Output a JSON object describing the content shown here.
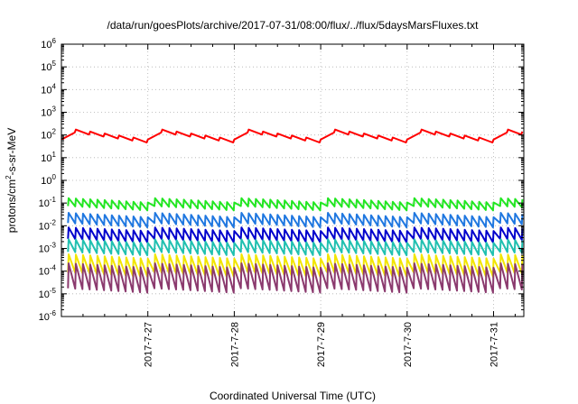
{
  "chart_data": {
    "type": "line",
    "title": "/data/run/goesPlots/archive/2017-07-31/08:00/flux/../flux/5daysMarsFluxes.txt",
    "xlabel": "Coordinated Universal Time (UTC)",
    "ylabel": {
      "pre": "protons/cm",
      "sup": "2",
      "post": "-s-sr-MeV"
    },
    "yscale": "log",
    "ylim_exp": [
      -6,
      6
    ],
    "xlim_days": [
      26.0,
      31.35
    ],
    "x_ticks": [
      {
        "day": 27,
        "label": "2017-7-27"
      },
      {
        "day": 28,
        "label": "2017-7-28"
      },
      {
        "day": 29,
        "label": "2017-7-29"
      },
      {
        "day": 30,
        "label": "2017-7-30"
      },
      {
        "day": 31,
        "label": "2017-7-31"
      }
    ],
    "grid": true,
    "legend": "none",
    "series": [
      {
        "color": "#ff0000",
        "mean_log10": 1.98,
        "amplitude": 0.25,
        "sawtooth_period_h": 4,
        "sawtooth_depth": 0.14
      },
      {
        "color": "#22e622",
        "mean_log10": -1.05,
        "amplitude": 0.1,
        "sawtooth_period_h": 2,
        "sawtooth_depth": 0.35
      },
      {
        "color": "#1f77e0",
        "mean_log10": -1.75,
        "amplitude": 0.1,
        "sawtooth_period_h": 2,
        "sawtooth_depth": 0.45
      },
      {
        "color": "#0000cc",
        "mean_log10": -2.4,
        "amplitude": 0.08,
        "sawtooth_period_h": 2,
        "sawtooth_depth": 0.5
      },
      {
        "color": "#20c0b0",
        "mean_log10": -2.95,
        "amplitude": 0.08,
        "sawtooth_period_h": 2,
        "sawtooth_depth": 0.55
      },
      {
        "color": "#f2e500",
        "mean_log10": -3.75,
        "amplitude": 0.1,
        "sawtooth_period_h": 2,
        "sawtooth_depth": 0.8
      },
      {
        "color": "#8b3a6e",
        "mean_log10": -4.3,
        "amplitude": 0.1,
        "sawtooth_period_h": 2,
        "sawtooth_depth": 1.1
      }
    ]
  }
}
